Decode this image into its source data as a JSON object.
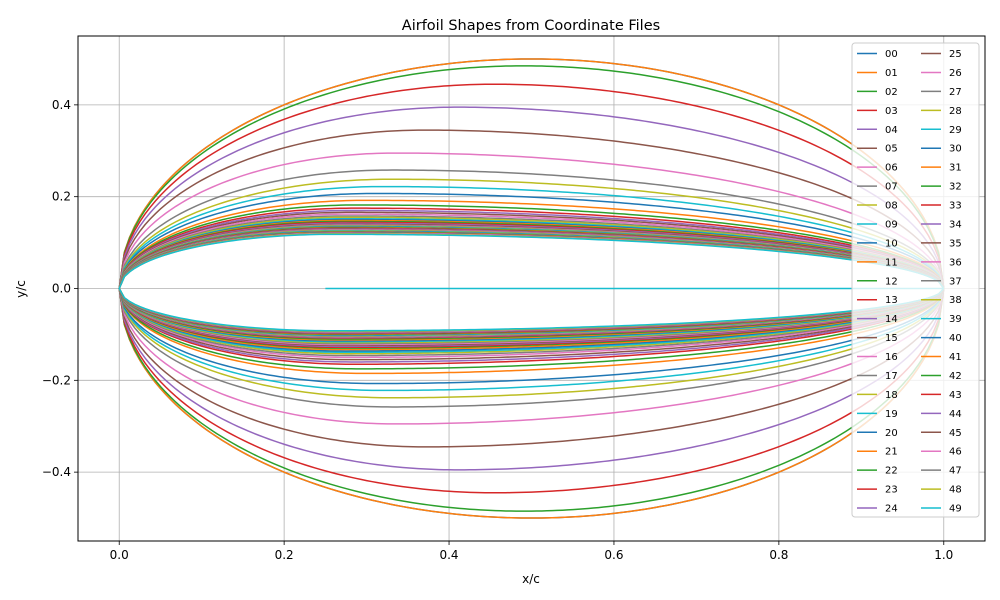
{
  "chart_data": {
    "type": "line",
    "title": "Airfoil Shapes from Coordinate Files",
    "xlabel": "x/c",
    "ylabel": "y/c",
    "xlim": [
      -0.05,
      1.05
    ],
    "ylim": [
      -0.55,
      0.55
    ],
    "xticks": [
      0.0,
      0.2,
      0.4,
      0.6,
      0.8,
      1.0
    ],
    "xtick_labels": [
      "0.0",
      "0.2",
      "0.4",
      "0.6",
      "0.8",
      "1.0"
    ],
    "yticks": [
      -0.4,
      -0.2,
      0.0,
      0.2,
      0.4
    ],
    "ytick_labels": [
      "−0.4",
      "−0.2",
      "0.0",
      "0.2",
      "0.4"
    ],
    "grid": true,
    "legend_position": "top-right",
    "legend_columns": 2,
    "series_colors": [
      "#1f77b4",
      "#ff7f0e",
      "#2ca02c",
      "#d62728",
      "#9467bd",
      "#8c564b",
      "#e377c2",
      "#7f7f7f",
      "#bcbd22",
      "#17becf"
    ],
    "curve_params": [
      [
        0.5,
        0.5,
        0.5,
        0.5
      ],
      [
        0.5,
        0.5,
        0.5,
        0.5
      ],
      [
        0.485,
        0.49,
        0.485,
        0.49
      ],
      [
        0.445,
        0.455,
        0.445,
        0.455
      ],
      [
        0.395,
        0.41,
        0.395,
        0.41
      ],
      [
        0.345,
        0.37,
        0.345,
        0.37
      ],
      [
        0.295,
        0.335,
        0.295,
        0.335
      ],
      [
        0.258,
        0.33,
        0.258,
        0.33
      ],
      [
        0.238,
        0.33,
        0.238,
        0.33
      ],
      [
        0.222,
        0.32,
        0.222,
        0.32
      ],
      [
        0.207,
        0.31,
        0.207,
        0.31
      ],
      [
        0.192,
        0.3,
        0.185,
        0.3
      ],
      [
        0.182,
        0.29,
        0.175,
        0.29
      ],
      [
        0.175,
        0.285,
        0.165,
        0.285
      ],
      [
        0.17,
        0.282,
        0.16,
        0.282
      ],
      [
        0.166,
        0.28,
        0.155,
        0.28
      ],
      [
        0.162,
        0.278,
        0.15,
        0.278
      ],
      [
        0.158,
        0.276,
        0.146,
        0.276
      ],
      [
        0.155,
        0.275,
        0.142,
        0.275
      ],
      [
        0.152,
        0.274,
        0.139,
        0.274
      ],
      [
        0.15,
        0.273,
        0.136,
        0.273
      ],
      [
        0.148,
        0.272,
        0.133,
        0.272
      ],
      [
        0.146,
        0.271,
        0.13,
        0.271
      ],
      [
        0.144,
        0.27,
        0.128,
        0.27
      ],
      [
        0.142,
        0.27,
        0.126,
        0.27
      ],
      [
        0.14,
        0.269,
        0.124,
        0.269
      ],
      [
        0.138,
        0.268,
        0.122,
        0.268
      ],
      [
        0.137,
        0.268,
        0.12,
        0.268
      ],
      [
        0.136,
        0.267,
        0.118,
        0.267
      ],
      [
        0.135,
        0.267,
        0.116,
        0.267
      ],
      [
        0.134,
        0.266,
        0.114,
        0.266
      ],
      [
        0.133,
        0.266,
        0.112,
        0.266
      ],
      [
        0.132,
        0.265,
        0.11,
        0.265
      ],
      [
        0.131,
        0.265,
        0.108,
        0.265
      ],
      [
        0.13,
        0.264,
        0.107,
        0.264
      ],
      [
        0.129,
        0.264,
        0.106,
        0.264
      ],
      [
        0.128,
        0.264,
        0.105,
        0.264
      ],
      [
        0.127,
        0.263,
        0.104,
        0.263
      ],
      [
        0.126,
        0.263,
        0.103,
        0.263
      ],
      [
        0.125,
        0.263,
        0.102,
        0.263
      ],
      [
        0.124,
        0.262,
        0.101,
        0.262
      ],
      [
        0.123,
        0.262,
        0.1,
        0.262
      ],
      [
        0.122,
        0.262,
        0.099,
        0.262
      ],
      [
        0.121,
        0.262,
        0.098,
        0.262
      ],
      [
        0.121,
        0.261,
        0.097,
        0.261
      ],
      [
        0.12,
        0.261,
        0.096,
        0.261
      ],
      [
        0.12,
        0.261,
        0.095,
        0.261
      ],
      [
        0.119,
        0.261,
        0.094,
        0.261
      ],
      [
        0.119,
        0.26,
        0.093,
        0.26
      ],
      [
        0.118,
        0.26,
        0.092,
        0.26
      ]
    ],
    "flat_line": {
      "x": [
        0.25,
        1.0
      ],
      "y": [
        0.0,
        0.0
      ]
    },
    "series": [
      {
        "name": "00"
      },
      {
        "name": "01"
      },
      {
        "name": "02"
      },
      {
        "name": "03"
      },
      {
        "name": "04"
      },
      {
        "name": "05"
      },
      {
        "name": "06"
      },
      {
        "name": "07"
      },
      {
        "name": "08"
      },
      {
        "name": "09"
      },
      {
        "name": "10"
      },
      {
        "name": "11"
      },
      {
        "name": "12"
      },
      {
        "name": "13"
      },
      {
        "name": "14"
      },
      {
        "name": "15"
      },
      {
        "name": "16"
      },
      {
        "name": "17"
      },
      {
        "name": "18"
      },
      {
        "name": "19"
      },
      {
        "name": "20"
      },
      {
        "name": "21"
      },
      {
        "name": "22"
      },
      {
        "name": "23"
      },
      {
        "name": "24"
      },
      {
        "name": "25"
      },
      {
        "name": "26"
      },
      {
        "name": "27"
      },
      {
        "name": "28"
      },
      {
        "name": "29"
      },
      {
        "name": "30"
      },
      {
        "name": "31"
      },
      {
        "name": "32"
      },
      {
        "name": "33"
      },
      {
        "name": "34"
      },
      {
        "name": "35"
      },
      {
        "name": "36"
      },
      {
        "name": "37"
      },
      {
        "name": "38"
      },
      {
        "name": "39"
      },
      {
        "name": "40"
      },
      {
        "name": "41"
      },
      {
        "name": "42"
      },
      {
        "name": "43"
      },
      {
        "name": "44"
      },
      {
        "name": "45"
      },
      {
        "name": "46"
      },
      {
        "name": "47"
      },
      {
        "name": "48"
      },
      {
        "name": "49"
      }
    ]
  }
}
